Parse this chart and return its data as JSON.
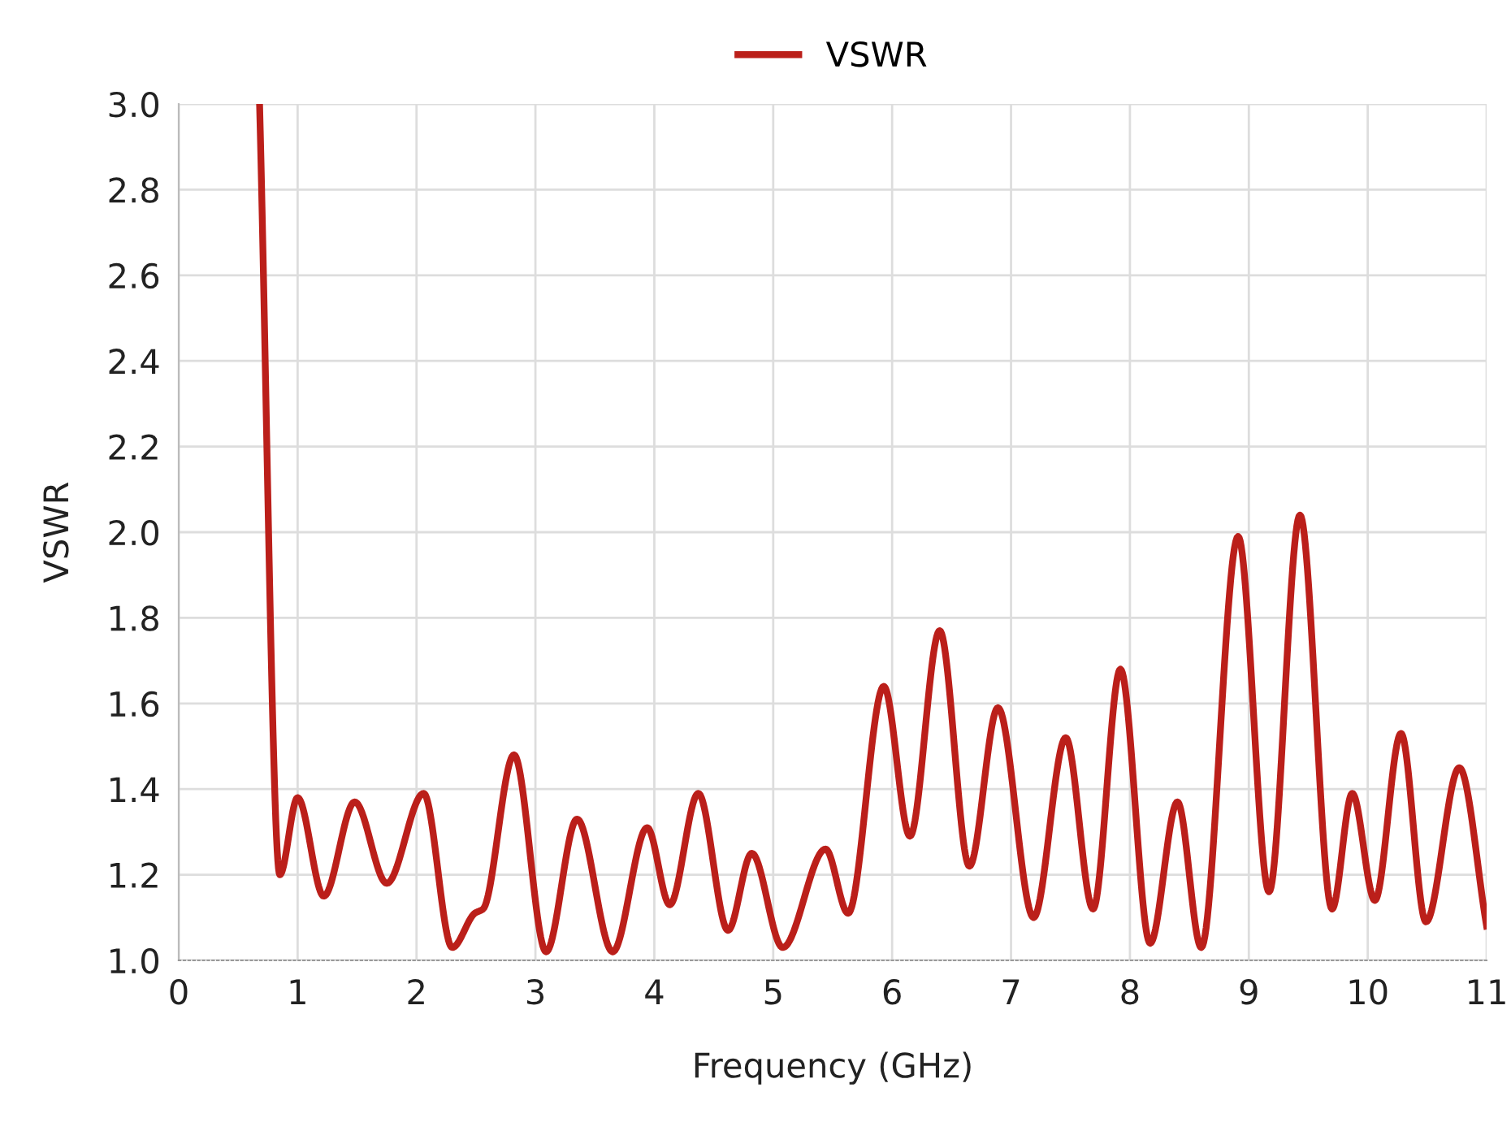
{
  "chart_data": {
    "type": "line",
    "xlabel": "Frequency (GHz)",
    "ylabel": "VSWR",
    "legend": "top",
    "grid": true,
    "marker": "none",
    "line_style": "solid",
    "xlim": [
      0,
      11
    ],
    "xticks": [
      0,
      1,
      2,
      3,
      4,
      5,
      6,
      7,
      8,
      9,
      10,
      11
    ],
    "ylim": [
      1.0,
      3.0
    ],
    "yticks": [
      {
        "value": 1,
        "label": "1.0"
      },
      1.2,
      1.4,
      1.6,
      1.8,
      {
        "value": 2,
        "label": "2.0"
      },
      2.2,
      2.4,
      2.6,
      2.8,
      {
        "value": 3,
        "label": "3.0"
      }
    ],
    "series": [
      {
        "name": "VSWR",
        "color": "#bb1f1a",
        "x": [
          0.68,
          0.85,
          1.0,
          1.22,
          1.48,
          1.75,
          2.06,
          2.3,
          2.49,
          2.56,
          2.82,
          3.09,
          3.35,
          3.65,
          3.94,
          4.13,
          4.37,
          4.62,
          4.82,
          5.08,
          5.44,
          5.63,
          5.93,
          6.15,
          6.4,
          6.65,
          6.89,
          7.19,
          7.46,
          7.69,
          7.92,
          8.17,
          8.4,
          8.6,
          8.91,
          9.17,
          9.43,
          9.7,
          9.87,
          10.06,
          10.28,
          10.49,
          10.77,
          11.0
        ],
        "values": [
          3.0,
          1.2,
          1.38,
          1.15,
          1.37,
          1.18,
          1.39,
          1.03,
          1.11,
          1.12,
          1.48,
          1.02,
          1.33,
          1.02,
          1.31,
          1.13,
          1.39,
          1.07,
          1.25,
          1.03,
          1.26,
          1.11,
          1.64,
          1.29,
          1.77,
          1.22,
          1.59,
          1.1,
          1.52,
          1.12,
          1.68,
          1.04,
          1.37,
          1.03,
          1.99,
          1.16,
          2.04,
          1.12,
          1.39,
          1.14,
          1.53,
          1.09,
          1.45,
          1.08
        ]
      }
    ]
  }
}
